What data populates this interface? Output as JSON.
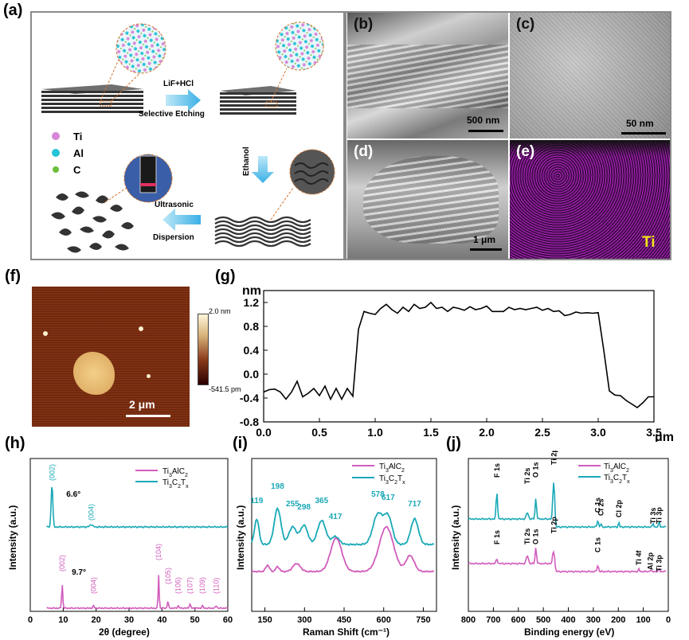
{
  "panel_labels": {
    "a": "(a)",
    "b": "(b)",
    "c": "(c)",
    "d": "(d)",
    "e": "(e)",
    "f": "(f)",
    "g": "(g)",
    "h": "(h)",
    "i": "(i)",
    "j": "(j)"
  },
  "schematic": {
    "etch_label_1": "LiF+HCl",
    "etch_label_2": "Selective Etching",
    "ethanol_label": "Ethanol",
    "ultra_label_1": "Ultrasonic",
    "ultra_label_2": "Dispersion",
    "legend": [
      {
        "name": "Ti",
        "color": "#d887d8"
      },
      {
        "name": "Al",
        "color": "#22c4d6"
      },
      {
        "name": "C",
        "color": "#6abf3a"
      }
    ]
  },
  "micrographs": {
    "b_scale": "500 nm",
    "c_scale": "50 nm",
    "d_scale": "1 μm",
    "e_element": "Ti"
  },
  "afm": {
    "scale": "2 μm",
    "colorbar_max": "2.0 nm",
    "colorbar_min": "-541.5 pm"
  },
  "chart_data": [
    {
      "id": "g",
      "type": "line",
      "ylabel": "nm",
      "xlabel": "μm",
      "xlim": [
        0,
        3.5
      ],
      "ylim": [
        -0.8,
        1.4
      ],
      "xticks": [
        "0.0",
        "0.5",
        "1.0",
        "1.5",
        "2.0",
        "2.5",
        "3.0",
        "3.5"
      ],
      "yticks": [
        "-0.8",
        "-0.4",
        "0.0",
        "0.4",
        "0.8",
        "1.2"
      ],
      "x": [
        0,
        0.05,
        0.1,
        0.15,
        0.2,
        0.25,
        0.3,
        0.35,
        0.4,
        0.45,
        0.5,
        0.55,
        0.6,
        0.65,
        0.7,
        0.75,
        0.8,
        0.85,
        0.9,
        0.95,
        1.0,
        1.05,
        1.1,
        1.15,
        1.2,
        1.25,
        1.3,
        1.35,
        1.4,
        1.45,
        1.5,
        1.55,
        1.6,
        1.65,
        1.7,
        1.75,
        1.8,
        1.85,
        1.9,
        1.95,
        2.0,
        2.05,
        2.1,
        2.15,
        2.2,
        2.25,
        2.3,
        2.35,
        2.4,
        2.45,
        2.5,
        2.55,
        2.6,
        2.65,
        2.7,
        2.75,
        2.8,
        2.85,
        2.9,
        2.95,
        3.0,
        3.05,
        3.1,
        3.15,
        3.2,
        3.25,
        3.3,
        3.35,
        3.4,
        3.45,
        3.5
      ],
      "y": [
        -0.3,
        -0.26,
        -0.25,
        -0.3,
        -0.42,
        -0.3,
        -0.12,
        -0.38,
        -0.32,
        -0.24,
        -0.36,
        -0.2,
        -0.42,
        -0.24,
        -0.42,
        -0.24,
        -0.37,
        0.75,
        1.05,
        1.02,
        1.0,
        1.1,
        1.17,
        1.08,
        1.02,
        1.12,
        1.05,
        1.17,
        1.1,
        1.12,
        1.2,
        1.1,
        1.12,
        1.05,
        1.12,
        1.1,
        1.07,
        1.13,
        1.08,
        1.1,
        1.14,
        1.05,
        1.05,
        1.05,
        1.12,
        1.08,
        1.1,
        1.08,
        1.1,
        1.12,
        1.07,
        1.1,
        1.05,
        1.06,
        0.98,
        1.0,
        1.04,
        1.02,
        1.03,
        1.02,
        1.03,
        0.4,
        -0.28,
        -0.35,
        -0.36,
        -0.44,
        -0.5,
        -0.56,
        -0.48,
        -0.38,
        -0.38
      ]
    },
    {
      "id": "h",
      "type": "line",
      "xlabel": "2θ (degree)",
      "ylabel": "Intensity (a.u.)",
      "xlim": [
        0,
        60
      ],
      "xticks": [
        "0",
        "10",
        "20",
        "30",
        "40",
        "50",
        "60"
      ],
      "legend": [
        "Ti3AlC2",
        "Ti3C2Tx"
      ],
      "series": [
        {
          "name": "Ti3AlC2",
          "color": "#d25cbc",
          "peaks": [
            {
              "x": 9.7,
              "label": "(002)",
              "angle": "9.7°"
            },
            {
              "x": 19.2,
              "label": "(004)"
            },
            {
              "x": 39,
              "label": "(104)"
            },
            {
              "x": 41.8,
              "label": "(105)"
            },
            {
              "x": 44.9,
              "label": "(106)"
            },
            {
              "x": 48.5,
              "label": "(107)"
            },
            {
              "x": 52.3,
              "label": "(109)"
            },
            {
              "x": 56.5,
              "label": "(110)"
            }
          ]
        },
        {
          "name": "Ti3C2Tx",
          "color": "#1aa9b7",
          "peaks": [
            {
              "x": 6.6,
              "label": "(002)",
              "angle": "6.6°"
            },
            {
              "x": 18.5,
              "label": "(004)"
            }
          ]
        }
      ]
    },
    {
      "id": "i",
      "type": "line",
      "xlabel": "Raman Shift (cm⁻¹)",
      "ylabel": "Intensity (a.u.)",
      "xlim": [
        100,
        800
      ],
      "xticks": [
        "150",
        "300",
        "450",
        "600",
        "750"
      ],
      "legend": [
        "Ti3AlC2",
        "Ti3C2Tx"
      ],
      "peak_labels": [
        "119",
        "198",
        "255",
        "298",
        "365",
        "417",
        "578",
        "617",
        "717"
      ]
    },
    {
      "id": "j",
      "type": "line",
      "xlabel": "Binding energy (eV)",
      "ylabel": "Intensity (a.u.)",
      "xlim": [
        800,
        0
      ],
      "xticks": [
        "800",
        "700",
        "600",
        "500",
        "400",
        "300",
        "200",
        "100",
        "0"
      ],
      "legend": [
        "Ti3AlC2",
        "Ti3C2Tx"
      ],
      "top_labels": [
        "F 1s",
        "Ti 2s",
        "O 1s",
        "Ti 2p",
        "C 1s",
        "Cl 2s",
        "Cl 2p",
        "Ti 3s",
        "Ti 3p"
      ],
      "bottom_labels": [
        "F 1s",
        "Ti 2s",
        "O 1s",
        "Ti 2p",
        "C 1s",
        "Ti 4f",
        "Al 2p",
        "Ti 3p"
      ]
    }
  ]
}
